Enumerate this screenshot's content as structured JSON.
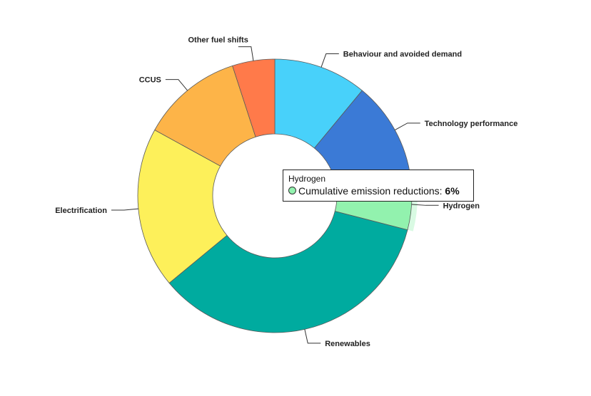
{
  "chart_data": {
    "type": "pie",
    "donut": true,
    "slices": [
      {
        "label": "Behaviour and avoided demand",
        "value": 11,
        "color": "#48d1fa"
      },
      {
        "label": "Technology performance",
        "value": 12,
        "color": "#3b7ad6"
      },
      {
        "label": "Hydrogen",
        "value": 6,
        "color": "#92f2ae"
      },
      {
        "label": "Renewables",
        "value": 35,
        "color": "#00ab9f"
      },
      {
        "label": "Electrification",
        "value": 19,
        "color": "#fdf05a"
      },
      {
        "label": "CCUS",
        "value": 12,
        "color": "#fdb448"
      },
      {
        "label": "Other fuel shifts",
        "value": 5,
        "color": "#ff7a4a"
      }
    ],
    "highlighted": "Hydrogen"
  },
  "tooltip": {
    "title": "Hydrogen",
    "series_label": "Cumulative emission reductions: ",
    "value": "6%",
    "color": "#92f2ae"
  }
}
